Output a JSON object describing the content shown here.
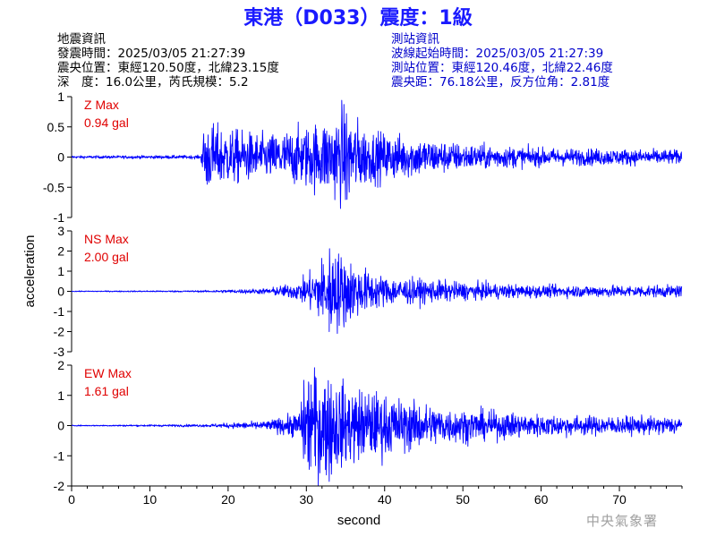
{
  "title": "東港（D033）震度：1級",
  "earthquake_info": {
    "heading": "地震資訊",
    "origin_time": "發震時間：2025/03/05 21:27:39",
    "epicenter": "震央位置：東經120.50度，北緯23.15度",
    "depth_magnitude": "深　度：16.0公里，芮氏規模：5.2"
  },
  "station_info": {
    "heading": "測站資訊",
    "wave_start": "波線起始時間：2025/03/05 21:27:39",
    "station_location": "測站位置：東經120.46度，北緯22.46度",
    "distance": "震央距：76.18公里，反方位角：2.81度"
  },
  "watermark": "中央氣象署",
  "colors": {
    "title": "#1a1aff",
    "trace": "#0000ff",
    "max_label": "#e00000",
    "station_text": "#0000cc"
  },
  "chart_data": {
    "type": "line",
    "xlabel": "second",
    "ylabel": "acceleration",
    "xlim": [
      0,
      78
    ],
    "xticks": [
      0,
      10,
      20,
      30,
      40,
      50,
      60,
      70
    ],
    "panels": [
      {
        "name": "Z",
        "max_title": "Z Max",
        "max_value": "0.94 gal",
        "ylim": [
          -1,
          1
        ],
        "yticks": [
          -1,
          -0.5,
          0,
          0.5,
          1
        ],
        "ytick_labels": [
          "-1",
          "-0.5",
          "0",
          "0.5",
          "1"
        ],
        "envelope_t": [
          0,
          16.5,
          17,
          20,
          25,
          30,
          33,
          35,
          38,
          42,
          50,
          60,
          70,
          78
        ],
        "envelope_a": [
          0.015,
          0.02,
          0.4,
          0.32,
          0.25,
          0.35,
          0.45,
          0.55,
          0.3,
          0.25,
          0.15,
          0.1,
          0.09,
          0.08
        ],
        "extremes": [
          [
            17.3,
            -0.45
          ],
          [
            34.5,
            0.94
          ],
          [
            35.2,
            -0.7
          ]
        ]
      },
      {
        "name": "NS",
        "max_title": "NS Max",
        "max_value": "2.00 gal",
        "ylim": [
          -3,
          3
        ],
        "yticks": [
          -3,
          -2,
          -1,
          0,
          1,
          2,
          3
        ],
        "ytick_labels": [
          "-3",
          "-2",
          "-1",
          "0",
          "1",
          "2",
          "3"
        ],
        "envelope_t": [
          0,
          17,
          25,
          29,
          31,
          33,
          35,
          37,
          40,
          45,
          50,
          60,
          70,
          78
        ],
        "envelope_a": [
          0.015,
          0.03,
          0.1,
          0.3,
          0.8,
          1.5,
          1.2,
          0.8,
          0.5,
          0.4,
          0.3,
          0.2,
          0.2,
          0.2
        ],
        "extremes": [
          [
            32.9,
            -2.0
          ],
          [
            33.7,
            1.6
          ]
        ]
      },
      {
        "name": "EW",
        "max_title": "EW Max",
        "max_value": "1.61 gal",
        "ylim": [
          -2,
          2
        ],
        "yticks": [
          -2,
          -1,
          0,
          1,
          2
        ],
        "ytick_labels": [
          "-2",
          "-1",
          "0",
          "1",
          "2"
        ],
        "envelope_t": [
          0,
          17,
          25,
          29,
          30,
          32,
          35,
          38,
          42,
          48,
          55,
          60,
          70,
          78
        ],
        "envelope_a": [
          0.01,
          0.03,
          0.1,
          0.3,
          1.2,
          1.3,
          0.9,
          0.8,
          0.6,
          0.4,
          0.3,
          0.25,
          0.2,
          0.2
        ],
        "extremes": [
          [
            33.2,
            -1.61
          ],
          [
            30.6,
            1.35
          ]
        ]
      }
    ]
  }
}
